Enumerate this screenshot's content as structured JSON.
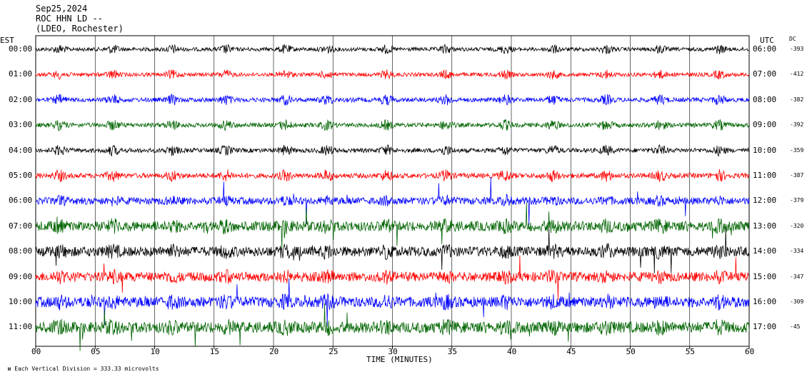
{
  "header": {
    "date": "Sep25,2024",
    "station": "ROC HHN LD --",
    "network": "(LDEO, Rochester)"
  },
  "axis": {
    "left_tz": "EST",
    "right_tz": "UTC",
    "dc_label": "DC",
    "xlabel": "TIME (MINUTES)"
  },
  "footer": {
    "scale_note": "Each Vertical Division = 333.33 microvolts"
  },
  "chart_data": {
    "type": "line",
    "title": "",
    "xlabel": "TIME (MINUTES)",
    "x_ticks": [
      "00",
      "05",
      "10",
      "15",
      "20",
      "25",
      "30",
      "35",
      "40",
      "45",
      "50",
      "55",
      "60"
    ],
    "xlim": [
      0,
      60
    ],
    "grid": "vertical",
    "trace_colors": [
      "#000000",
      "#ff0000",
      "#0000ff",
      "#006400"
    ],
    "rows": [
      {
        "est": "00:00",
        "utc": "06:00",
        "dc": "-393",
        "amplitude": 0.35
      },
      {
        "est": "01:00",
        "utc": "07:00",
        "dc": "-412",
        "amplitude": 0.35
      },
      {
        "est": "02:00",
        "utc": "08:00",
        "dc": "-382",
        "amplitude": 0.4
      },
      {
        "est": "03:00",
        "utc": "09:00",
        "dc": "-392",
        "amplitude": 0.4
      },
      {
        "est": "04:00",
        "utc": "10:00",
        "dc": "-359",
        "amplitude": 0.4
      },
      {
        "est": "05:00",
        "utc": "11:00",
        "dc": "-387",
        "amplitude": 0.45
      },
      {
        "est": "06:00",
        "utc": "12:00",
        "dc": "-379",
        "amplitude": 0.65
      },
      {
        "est": "07:00",
        "utc": "13:00",
        "dc": "-320",
        "amplitude": 0.9
      },
      {
        "est": "08:00",
        "utc": "14:00",
        "dc": "-334",
        "amplitude": 0.9
      },
      {
        "est": "09:00",
        "utc": "15:00",
        "dc": "-347",
        "amplitude": 0.85
      },
      {
        "est": "10:00",
        "utc": "16:00",
        "dc": "-309",
        "amplitude": 0.95
      },
      {
        "est": "11:00",
        "utc": "17:00",
        "dc": "-45",
        "amplitude": 1.0
      }
    ]
  }
}
